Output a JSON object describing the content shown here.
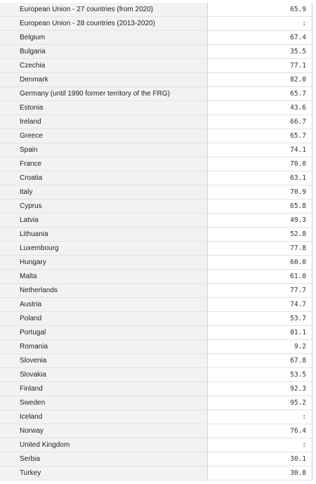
{
  "rows": [
    {
      "name": "European Union - 27 countries (from 2020)",
      "value": "65.9"
    },
    {
      "name": "European Union - 28 countries (2013-2020)",
      "value": ":"
    },
    {
      "name": "Belgium",
      "value": "67.4"
    },
    {
      "name": "Bulgaria",
      "value": "35.5"
    },
    {
      "name": "Czechia",
      "value": "77.1"
    },
    {
      "name": "Denmark",
      "value": "82.0"
    },
    {
      "name": "Germany (until 1990 former territory of the FRG)",
      "value": "65.7"
    },
    {
      "name": "Estonia",
      "value": "43.6"
    },
    {
      "name": "Ireland",
      "value": "66.7"
    },
    {
      "name": "Greece",
      "value": "65.7"
    },
    {
      "name": "Spain",
      "value": "74.1"
    },
    {
      "name": "France",
      "value": "70.0"
    },
    {
      "name": "Croatia",
      "value": "63.1"
    },
    {
      "name": "Italy",
      "value": "70.9"
    },
    {
      "name": "Cyprus",
      "value": "65.8"
    },
    {
      "name": "Latvia",
      "value": "49.3"
    },
    {
      "name": "Lithuania",
      "value": "52.8"
    },
    {
      "name": "Luxembourg",
      "value": "77.8"
    },
    {
      "name": "Hungary",
      "value": "60.0"
    },
    {
      "name": "Malta",
      "value": "61.0"
    },
    {
      "name": "Netherlands",
      "value": "77.7"
    },
    {
      "name": "Austria",
      "value": "74.7"
    },
    {
      "name": "Poland",
      "value": "53.7"
    },
    {
      "name": "Portugal",
      "value": "81.1"
    },
    {
      "name": "Romania",
      "value": "9.2"
    },
    {
      "name": "Slovenia",
      "value": "67.8"
    },
    {
      "name": "Slovakia",
      "value": "53.5"
    },
    {
      "name": "Finland",
      "value": "92.3"
    },
    {
      "name": "Sweden",
      "value": "95.2"
    },
    {
      "name": "Iceland",
      "value": ":"
    },
    {
      "name": "Norway",
      "value": "76.4"
    },
    {
      "name": "United Kingdom",
      "value": ":"
    },
    {
      "name": "Serbia",
      "value": "30.1"
    },
    {
      "name": "Turkey",
      "value": "30.8"
    }
  ]
}
